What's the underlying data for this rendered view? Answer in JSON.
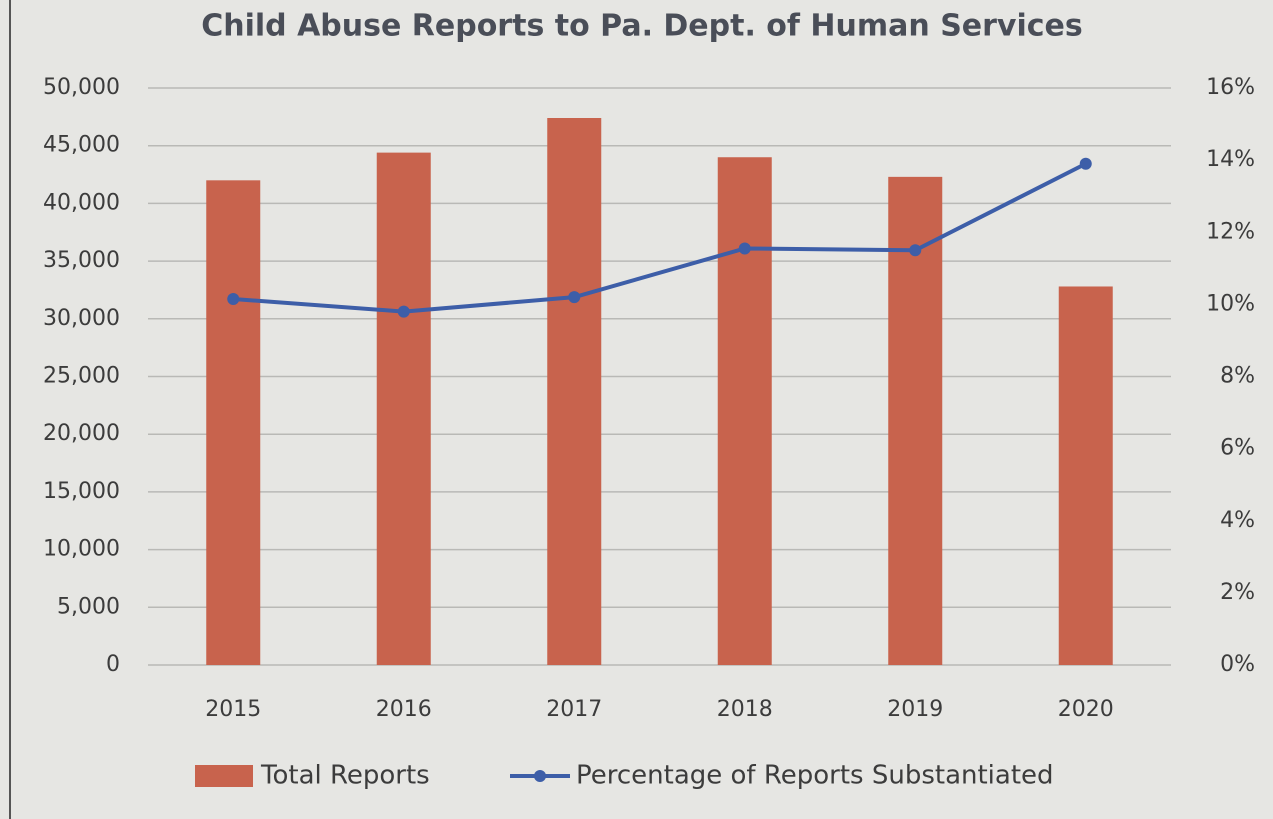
{
  "chart_data": {
    "type": "bar",
    "title": "Child Abuse Reports to Pa. Dept. of Human Services",
    "categories": [
      "2015",
      "2016",
      "2017",
      "2018",
      "2019",
      "2020"
    ],
    "series": [
      {
        "name": "Total Reports",
        "type": "bar",
        "color": "#c8634d",
        "values": [
          42000,
          44400,
          47400,
          44000,
          42300,
          32800
        ]
      },
      {
        "name": "Percentage of Reports Substantiated",
        "type": "line",
        "axis": "y2",
        "color": "#3d5ea8",
        "values": [
          10.15,
          9.8,
          10.2,
          11.55,
          11.5,
          13.9
        ]
      }
    ],
    "ylim": [
      0,
      50000
    ],
    "yticks": [
      0,
      {
        "value": 5000,
        "label": "5,000"
      },
      {
        "value": 10000,
        "label": "10,000"
      },
      {
        "value": 15000,
        "label": "15,000"
      },
      {
        "value": 20000,
        "label": "20,000"
      },
      {
        "value": 25000,
        "label": "25,000"
      },
      {
        "value": 30000,
        "label": "30,000"
      },
      {
        "value": 35000,
        "label": "35,000"
      },
      {
        "value": 40000,
        "label": "40,000"
      },
      {
        "value": 45000,
        "label": "45,000"
      },
      {
        "value": 50000,
        "label": "50,000"
      }
    ],
    "y2lim": [
      0,
      16
    ],
    "y2ticks": [
      {
        "value": 0,
        "label": "0%"
      },
      {
        "value": 2,
        "label": "2%"
      },
      {
        "value": 4,
        "label": "4%"
      },
      {
        "value": 6,
        "label": "6%"
      },
      {
        "value": 8,
        "label": "8%"
      },
      {
        "value": 10,
        "label": "10%"
      },
      {
        "value": 12,
        "label": "12%"
      },
      {
        "value": 14,
        "label": "14%"
      },
      {
        "value": 16,
        "label": "16%"
      }
    ],
    "grid": true,
    "legend": "bottom"
  }
}
